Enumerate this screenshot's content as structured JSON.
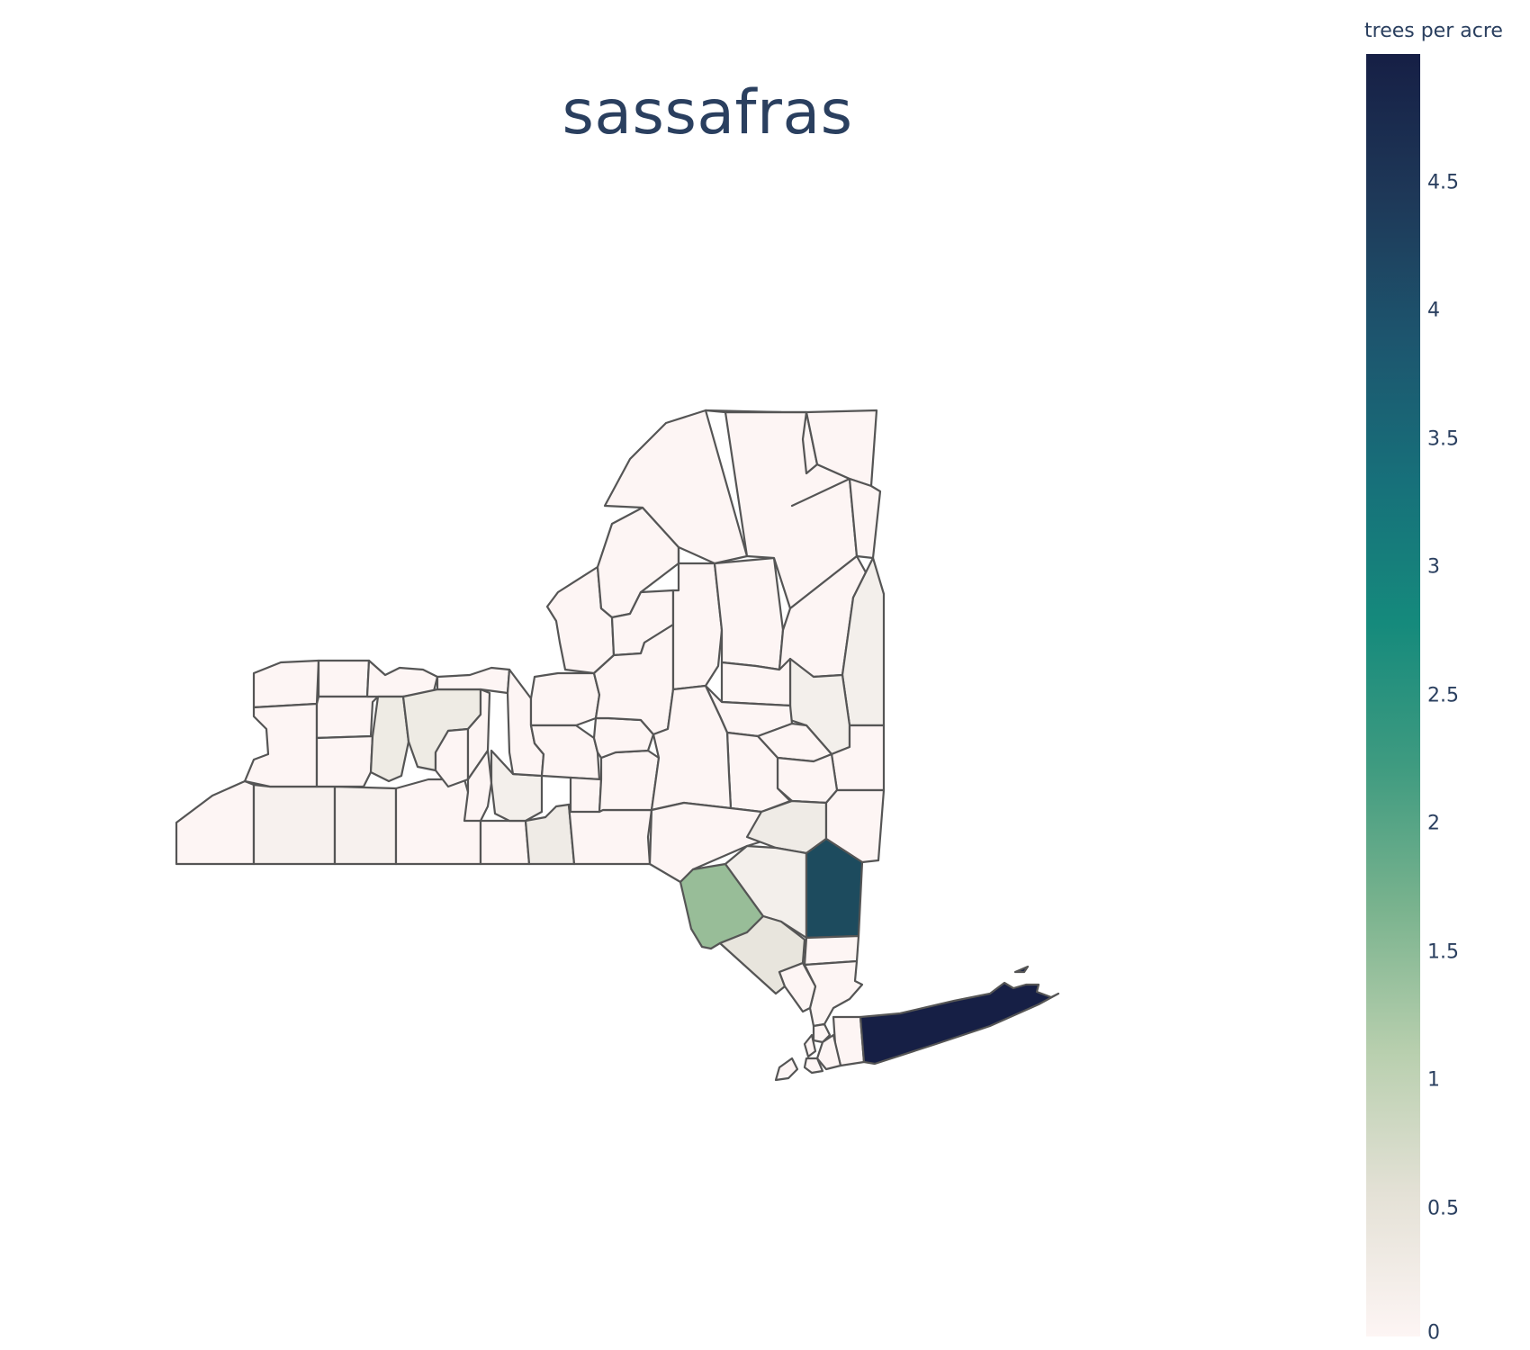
{
  "map": {
    "title": "sassafras",
    "region": "New York State counties",
    "stroke_color": "#555555",
    "background": "#ffffff"
  },
  "colorbar": {
    "title": "trees per acre",
    "range": [
      0,
      5
    ],
    "ticks": [
      "0",
      "0.5",
      "1",
      "1.5",
      "2",
      "2.5",
      "3",
      "3.5",
      "4",
      "4.5"
    ],
    "colorscale": [
      "#fdf5f4",
      "#e4e1d6",
      "#b8cfae",
      "#7ab38e",
      "#3f9b80",
      "#158a7c",
      "#17707a",
      "#1d556e",
      "#1e3858",
      "#161f45"
    ]
  },
  "highlighted_counties": [
    {
      "name": "Suffolk",
      "value": 5.0
    },
    {
      "name": "Dutchess",
      "value": 4.2
    },
    {
      "name": "Sullivan",
      "value": 1.7
    },
    {
      "name": "Orange",
      "value": 0.3
    },
    {
      "name": "Ulster",
      "value": 0.2
    },
    {
      "name": "Columbia",
      "value": 0.2
    },
    {
      "name": "Washington",
      "value": 0.15
    },
    {
      "name": "Livingston",
      "value": 0.2
    },
    {
      "name": "Ontario",
      "value": 0.2
    },
    {
      "name": "Cortland",
      "value": 0.2
    },
    {
      "name": "Broome",
      "value": 0.2
    },
    {
      "name": "Allegany",
      "value": 0.1
    },
    {
      "name": "Steuben",
      "value": 0.1
    }
  ]
}
